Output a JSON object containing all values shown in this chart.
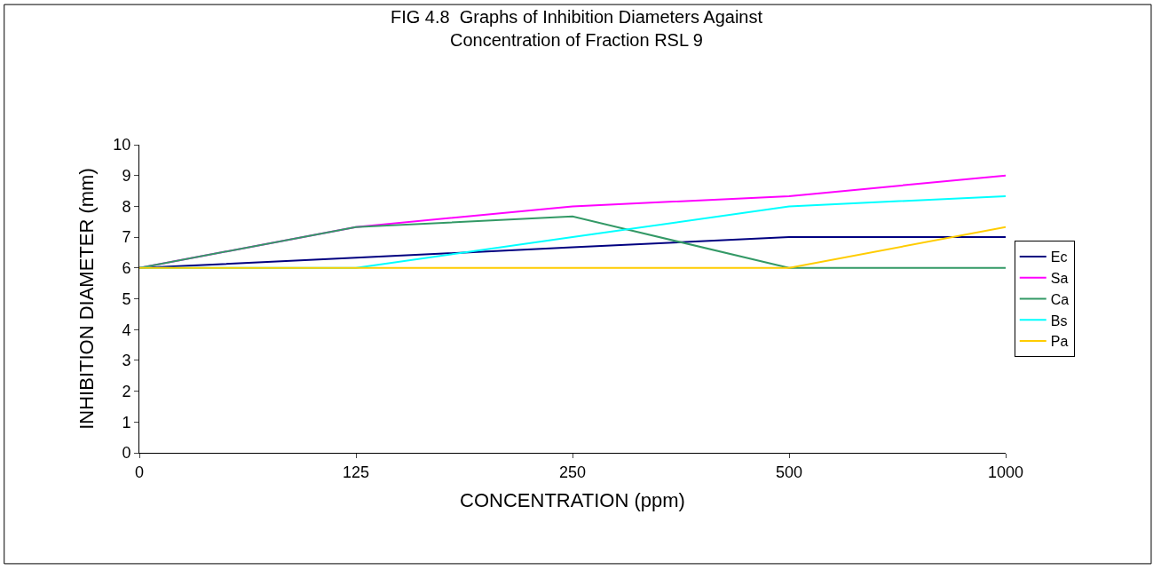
{
  "chart_data": {
    "type": "line",
    "title": "FIG 4.8  Graphs of Inhibition Diameters Against\nConcentration of Fraction RSL 9",
    "xlabel": "CONCENTRATION (ppm)",
    "ylabel": "INHIBITION DIAMETER (mm)",
    "categories": [
      "0",
      "125",
      "250",
      "500",
      "1000"
    ],
    "series": [
      {
        "name": "Ec",
        "color": "#000080",
        "values": [
          6,
          6.33,
          6.67,
          7,
          7
        ]
      },
      {
        "name": "Sa",
        "color": "#ff00ff",
        "values": [
          6,
          7.33,
          8,
          8.33,
          9
        ]
      },
      {
        "name": "Ca",
        "color": "#339966",
        "values": [
          6,
          7.33,
          7.67,
          6,
          6
        ]
      },
      {
        "name": "Bs",
        "color": "#00ffff",
        "values": [
          6,
          6,
          7,
          8,
          8.33
        ]
      },
      {
        "name": "Pa",
        "color": "#ffcc00",
        "values": [
          6,
          6,
          6,
          6,
          7.33
        ]
      }
    ],
    "ylim": [
      0,
      10
    ],
    "yticks": [
      0,
      1,
      2,
      3,
      4,
      5,
      6,
      7,
      8,
      9,
      10
    ],
    "legend": "right",
    "marker": "none",
    "line_style": "solid"
  }
}
